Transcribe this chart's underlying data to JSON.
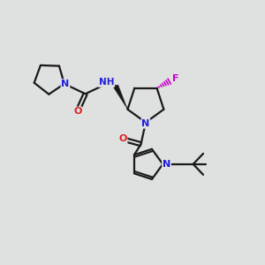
{
  "bg_color": "#dfe0e0",
  "bond_color": "#1a1a1a",
  "N_color": "#2020dd",
  "O_color": "#dd2020",
  "F_color": "#cc00cc",
  "line_width": 1.6,
  "figsize": [
    3.0,
    3.0
  ],
  "dpi": 100,
  "xlim": [
    0,
    10
  ],
  "ylim": [
    0,
    10
  ]
}
